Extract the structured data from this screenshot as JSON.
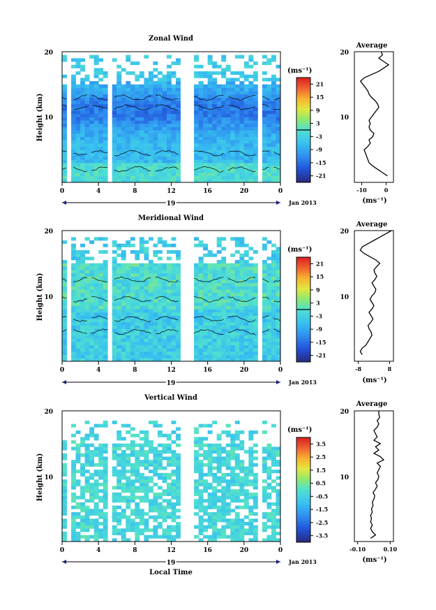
{
  "chart_data": [
    {
      "type": "heatmap",
      "title": "Zonal Wind",
      "ylabel": "Height (km)",
      "ylim": [
        0,
        20
      ],
      "yticks": [
        "10",
        "20"
      ],
      "xlim": [
        0,
        24
      ],
      "xticks": [
        "0",
        "4",
        "8",
        "12",
        "16",
        "20",
        "0"
      ],
      "date_label": "19",
      "month_label": "Jan 2013",
      "colorbar": {
        "unit": "(ms⁻¹)",
        "ticks": [
          "21",
          "15",
          "9",
          "3",
          "-3",
          "-9",
          "-15",
          "-21"
        ],
        "range": [
          -24,
          24
        ]
      },
      "average": {
        "title": "Average",
        "xlabel": "(ms⁻¹)",
        "xticks": [
          "-10",
          "0"
        ],
        "xlim": [
          -13,
          3
        ],
        "yticks": [
          "10",
          "20"
        ],
        "profile": [
          {
            "h": 1.0,
            "v": 0.5
          },
          {
            "h": 1.5,
            "v": -1.5
          },
          {
            "h": 2.0,
            "v": -3.5
          },
          {
            "h": 2.5,
            "v": -5.5
          },
          {
            "h": 3.0,
            "v": -7.0
          },
          {
            "h": 3.5,
            "v": -7.5
          },
          {
            "h": 4.0,
            "v": -8.0
          },
          {
            "h": 4.5,
            "v": -8.5
          },
          {
            "h": 5.0,
            "v": -9.0
          },
          {
            "h": 5.5,
            "v": -7.5
          },
          {
            "h": 6.0,
            "v": -6.5
          },
          {
            "h": 6.5,
            "v": -7.0
          },
          {
            "h": 7.0,
            "v": -5.5
          },
          {
            "h": 7.5,
            "v": -5.0
          },
          {
            "h": 8.0,
            "v": -6.5
          },
          {
            "h": 8.5,
            "v": -7.0
          },
          {
            "h": 9.0,
            "v": -6.5
          },
          {
            "h": 9.5,
            "v": -7.0
          },
          {
            "h": 10.0,
            "v": -6.0
          },
          {
            "h": 10.5,
            "v": -5.0
          },
          {
            "h": 11.0,
            "v": -4.0
          },
          {
            "h": 11.5,
            "v": -3.0
          },
          {
            "h": 12.0,
            "v": -3.5
          },
          {
            "h": 12.5,
            "v": -4.5
          },
          {
            "h": 13.0,
            "v": -6.0
          },
          {
            "h": 13.5,
            "v": -7.0
          },
          {
            "h": 14.0,
            "v": -7.5
          },
          {
            "h": 14.5,
            "v": -8.5
          },
          {
            "h": 15.0,
            "v": -9.5
          },
          {
            "h": 15.5,
            "v": -10.5
          },
          {
            "h": 16.0,
            "v": -9.0
          },
          {
            "h": 16.5,
            "v": -6.0
          },
          {
            "h": 17.0,
            "v": -3.0
          },
          {
            "h": 17.5,
            "v": -1.0
          },
          {
            "h": 18.0,
            "v": 1.0
          },
          {
            "h": 18.5,
            "v": -1.0
          },
          {
            "h": 19.0,
            "v": -3.0
          },
          {
            "h": 19.5,
            "v": -1.5
          },
          {
            "h": 20.0,
            "v": -2.0
          }
        ]
      }
    },
    {
      "type": "heatmap",
      "title": "Meridional Wind",
      "ylabel": "Height (km)",
      "ylim": [
        0,
        20
      ],
      "yticks": [
        "10",
        "20"
      ],
      "xlim": [
        0,
        24
      ],
      "xticks": [
        "0",
        "4",
        "8",
        "12",
        "16",
        "20",
        "0"
      ],
      "date_label": "19",
      "month_label": "Jan 2013",
      "colorbar": {
        "unit": "(ms⁻¹)",
        "ticks": [
          "21",
          "15",
          "9",
          "3",
          "-3",
          "-9",
          "-15",
          "-21"
        ],
        "range": [
          -24,
          24
        ]
      },
      "average": {
        "title": "Average",
        "xlabel": "(ms⁻¹)",
        "xticks": [
          "-8",
          "8"
        ],
        "xlim": [
          -10,
          10
        ],
        "yticks": [
          "10",
          "20"
        ],
        "profile": [
          {
            "h": 1.0,
            "v": -6.0
          },
          {
            "h": 1.5,
            "v": -7.0
          },
          {
            "h": 2.0,
            "v": -6.0
          },
          {
            "h": 2.5,
            "v": -4.0
          },
          {
            "h": 3.0,
            "v": -3.0
          },
          {
            "h": 3.5,
            "v": -2.0
          },
          {
            "h": 4.0,
            "v": -1.0
          },
          {
            "h": 4.5,
            "v": -1.5
          },
          {
            "h": 5.0,
            "v": -2.5
          },
          {
            "h": 5.5,
            "v": -3.0
          },
          {
            "h": 6.0,
            "v": -1.5
          },
          {
            "h": 6.5,
            "v": -0.5
          },
          {
            "h": 7.0,
            "v": -1.5
          },
          {
            "h": 7.5,
            "v": -2.5
          },
          {
            "h": 8.0,
            "v": -1.0
          },
          {
            "h": 8.5,
            "v": 0.0
          },
          {
            "h": 9.0,
            "v": -1.0
          },
          {
            "h": 9.5,
            "v": -2.0
          },
          {
            "h": 10.0,
            "v": -1.0
          },
          {
            "h": 10.5,
            "v": 0.5
          },
          {
            "h": 11.0,
            "v": 1.0
          },
          {
            "h": 11.5,
            "v": 0.0
          },
          {
            "h": 12.0,
            "v": -1.0
          },
          {
            "h": 12.5,
            "v": 0.5
          },
          {
            "h": 13.0,
            "v": 1.5
          },
          {
            "h": 13.5,
            "v": 0.5
          },
          {
            "h": 14.0,
            "v": 0.0
          },
          {
            "h": 14.5,
            "v": 1.5
          },
          {
            "h": 15.0,
            "v": 3.0
          },
          {
            "h": 15.5,
            "v": 1.0
          },
          {
            "h": 16.0,
            "v": -2.0
          },
          {
            "h": 16.5,
            "v": -5.0
          },
          {
            "h": 17.0,
            "v": -7.0
          },
          {
            "h": 17.5,
            "v": -6.0
          },
          {
            "h": 18.0,
            "v": -3.0
          },
          {
            "h": 18.5,
            "v": 0.0
          },
          {
            "h": 19.0,
            "v": 3.0
          },
          {
            "h": 19.5,
            "v": 6.0
          },
          {
            "h": 20.0,
            "v": 9.0
          }
        ]
      }
    },
    {
      "type": "heatmap",
      "title": "Vertical Wind",
      "ylabel": "Height (km)",
      "xlabel": "Local Time",
      "ylim": [
        0,
        20
      ],
      "yticks": [
        "10",
        "20"
      ],
      "xlim": [
        0,
        24
      ],
      "xticks": [
        "0",
        "4",
        "8",
        "12",
        "16",
        "20",
        "0"
      ],
      "date_label": "19",
      "month_label": "Jan 2013",
      "colorbar": {
        "unit": "(ms⁻¹)",
        "ticks": [
          "3.5",
          "2.5",
          "1.5",
          "0.5",
          "-0.5",
          "-1.5",
          "-2.5",
          "-3.5"
        ],
        "range": [
          -4,
          4
        ]
      },
      "average": {
        "title": "Average",
        "xlabel": "(ms⁻¹)",
        "xticks": [
          "-0.10",
          "0.10"
        ],
        "xlim": [
          -0.12,
          0.12
        ],
        "yticks": [
          "10",
          "20"
        ],
        "profile": [
          {
            "h": 0.5,
            "v": -0.02
          },
          {
            "h": 1.0,
            "v": 0.01
          },
          {
            "h": 1.5,
            "v": -0.01
          },
          {
            "h": 2.0,
            "v": -0.02
          },
          {
            "h": 2.5,
            "v": -0.01
          },
          {
            "h": 3.0,
            "v": -0.02
          },
          {
            "h": 3.5,
            "v": -0.015
          },
          {
            "h": 4.0,
            "v": -0.02
          },
          {
            "h": 4.5,
            "v": -0.01
          },
          {
            "h": 5.0,
            "v": -0.015
          },
          {
            "h": 5.5,
            "v": -0.005
          },
          {
            "h": 6.0,
            "v": -0.01
          },
          {
            "h": 6.5,
            "v": 0.0
          },
          {
            "h": 7.0,
            "v": 0.005
          },
          {
            "h": 7.5,
            "v": -0.005
          },
          {
            "h": 8.0,
            "v": 0.01
          },
          {
            "h": 8.5,
            "v": 0.02
          },
          {
            "h": 9.0,
            "v": 0.01
          },
          {
            "h": 9.5,
            "v": 0.025
          },
          {
            "h": 10.0,
            "v": 0.03
          },
          {
            "h": 10.5,
            "v": 0.02
          },
          {
            "h": 11.0,
            "v": 0.03
          },
          {
            "h": 11.5,
            "v": 0.04
          },
          {
            "h": 12.0,
            "v": 0.02
          },
          {
            "h": 12.5,
            "v": 0.06
          },
          {
            "h": 13.0,
            "v": 0.04
          },
          {
            "h": 13.5,
            "v": 0.0
          },
          {
            "h": 14.0,
            "v": 0.03
          },
          {
            "h": 14.5,
            "v": 0.01
          },
          {
            "h": 15.0,
            "v": 0.04
          },
          {
            "h": 15.5,
            "v": 0.0
          },
          {
            "h": 16.0,
            "v": 0.02
          },
          {
            "h": 16.5,
            "v": 0.01
          },
          {
            "h": 17.0,
            "v": 0.0
          },
          {
            "h": 17.5,
            "v": 0.02
          },
          {
            "h": 18.0,
            "v": 0.03
          },
          {
            "h": 18.5,
            "v": 0.02
          },
          {
            "h": 19.0,
            "v": 0.035
          },
          {
            "h": 19.5,
            "v": 0.03
          },
          {
            "h": 20.0,
            "v": 0.03
          }
        ]
      }
    }
  ]
}
